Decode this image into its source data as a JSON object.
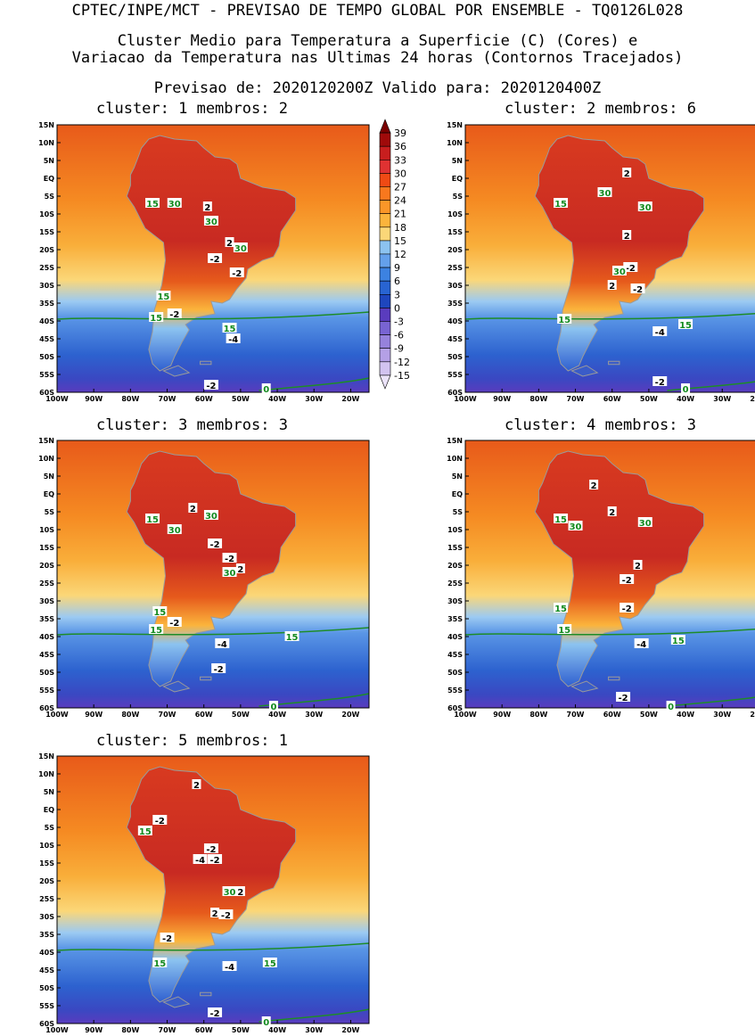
{
  "header": {
    "line1": "CPTEC/INPE/MCT - PREVISAO DE TEMPO GLOBAL POR ENSEMBLE - TQ0126L028",
    "line2": "Cluster Medio para Temperatura a Superficie (C) (Cores) e",
    "line3": "Variacao da Temperatura nas Ultimas 24 horas (Contornos Tracejados)",
    "line4": "Previsao de: 2020120200Z   Valido para: 2020120400Z"
  },
  "axes": {
    "lat_labels": [
      "15N",
      "10N",
      "5N",
      "EQ",
      "5S",
      "10S",
      "15S",
      "20S",
      "25S",
      "30S",
      "35S",
      "40S",
      "45S",
      "50S",
      "55S",
      "60S"
    ],
    "lon_labels": [
      "100W",
      "90W",
      "80W",
      "70W",
      "60W",
      "50W",
      "40W",
      "30W",
      "20W"
    ]
  },
  "colorbar": {
    "levels": [
      "39",
      "36",
      "33",
      "30",
      "27",
      "24",
      "21",
      "18",
      "15",
      "12",
      "9",
      "6",
      "3",
      "0",
      "-3",
      "-6",
      "-9",
      "-12",
      "-15"
    ],
    "colors": [
      "#7a0000",
      "#a00a0a",
      "#c81e1e",
      "#e03232",
      "#f04a14",
      "#f8781e",
      "#fa9628",
      "#fbb43c",
      "#fbd778",
      "#8cc3f0",
      "#64a0eb",
      "#3c82e1",
      "#2864d2",
      "#1e46be",
      "#5a3cbe",
      "#7864d2",
      "#9682dc",
      "#b4a0e6",
      "#d2c3f0",
      "#ece4fa"
    ]
  },
  "panels": [
    {
      "title": "cluster: 1   membros: 2",
      "labels": [
        {
          "text": "15",
          "kind": "iso"
        },
        {
          "text": "30",
          "kind": "iso"
        },
        {
          "text": "2",
          "kind": "var"
        },
        {
          "text": "30",
          "kind": "iso"
        },
        {
          "text": "2",
          "kind": "var"
        },
        {
          "text": "30",
          "kind": "iso"
        },
        {
          "text": "-2",
          "kind": "var"
        },
        {
          "text": "-2",
          "kind": "var"
        },
        {
          "text": "15",
          "kind": "iso"
        },
        {
          "text": "-2",
          "kind": "var"
        },
        {
          "text": "15",
          "kind": "iso"
        },
        {
          "text": "15",
          "kind": "iso"
        },
        {
          "text": "-4",
          "kind": "var"
        },
        {
          "text": "-2",
          "kind": "var"
        },
        {
          "text": "0",
          "kind": "iso"
        }
      ]
    },
    {
      "title": "cluster: 2   membros: 6",
      "labels": [
        {
          "text": "2",
          "kind": "var"
        },
        {
          "text": "30",
          "kind": "iso"
        },
        {
          "text": "15",
          "kind": "iso"
        },
        {
          "text": "30",
          "kind": "iso"
        },
        {
          "text": "2",
          "kind": "var"
        },
        {
          "text": "-2",
          "kind": "var"
        },
        {
          "text": "30",
          "kind": "iso"
        },
        {
          "text": "2",
          "kind": "var"
        },
        {
          "text": "-2",
          "kind": "var"
        },
        {
          "text": "15",
          "kind": "iso"
        },
        {
          "text": "-4",
          "kind": "var"
        },
        {
          "text": "15",
          "kind": "iso"
        },
        {
          "text": "-2",
          "kind": "var"
        },
        {
          "text": "0",
          "kind": "iso"
        }
      ]
    },
    {
      "title": "cluster: 3   membros: 3",
      "labels": [
        {
          "text": "2",
          "kind": "var"
        },
        {
          "text": "30",
          "kind": "iso"
        },
        {
          "text": "15",
          "kind": "iso"
        },
        {
          "text": "30",
          "kind": "iso"
        },
        {
          "text": "-2",
          "kind": "var"
        },
        {
          "text": "-2",
          "kind": "var"
        },
        {
          "text": "2",
          "kind": "var"
        },
        {
          "text": "30",
          "kind": "iso"
        },
        {
          "text": "15",
          "kind": "iso"
        },
        {
          "text": "-2",
          "kind": "var"
        },
        {
          "text": "15",
          "kind": "iso"
        },
        {
          "text": "-4",
          "kind": "var"
        },
        {
          "text": "15",
          "kind": "iso"
        },
        {
          "text": "-2",
          "kind": "var"
        },
        {
          "text": "0",
          "kind": "iso"
        }
      ]
    },
    {
      "title": "cluster: 4   membros: 3",
      "labels": [
        {
          "text": "2",
          "kind": "var"
        },
        {
          "text": "2",
          "kind": "var"
        },
        {
          "text": "15",
          "kind": "iso"
        },
        {
          "text": "30",
          "kind": "iso"
        },
        {
          "text": "30",
          "kind": "iso"
        },
        {
          "text": "2",
          "kind": "var"
        },
        {
          "text": "-2",
          "kind": "var"
        },
        {
          "text": "-2",
          "kind": "var"
        },
        {
          "text": "15",
          "kind": "iso"
        },
        {
          "text": "15",
          "kind": "iso"
        },
        {
          "text": "-4",
          "kind": "var"
        },
        {
          "text": "15",
          "kind": "iso"
        },
        {
          "text": "-2",
          "kind": "var"
        },
        {
          "text": "0",
          "kind": "iso"
        }
      ]
    },
    {
      "title": "cluster: 5   membros: 1",
      "labels": [
        {
          "text": "2",
          "kind": "var"
        },
        {
          "text": "-2",
          "kind": "var"
        },
        {
          "text": "15",
          "kind": "iso"
        },
        {
          "text": "-2",
          "kind": "var"
        },
        {
          "text": "-4",
          "kind": "var"
        },
        {
          "text": "-2",
          "kind": "var"
        },
        {
          "text": "30",
          "kind": "iso"
        },
        {
          "text": "2",
          "kind": "var"
        },
        {
          "text": "2",
          "kind": "var"
        },
        {
          "text": "-2",
          "kind": "var"
        },
        {
          "text": "-2",
          "kind": "var"
        },
        {
          "text": "15",
          "kind": "iso"
        },
        {
          "text": "-4",
          "kind": "var"
        },
        {
          "text": "15",
          "kind": "iso"
        },
        {
          "text": "-2",
          "kind": "var"
        },
        {
          "text": "0",
          "kind": "iso"
        }
      ]
    }
  ]
}
